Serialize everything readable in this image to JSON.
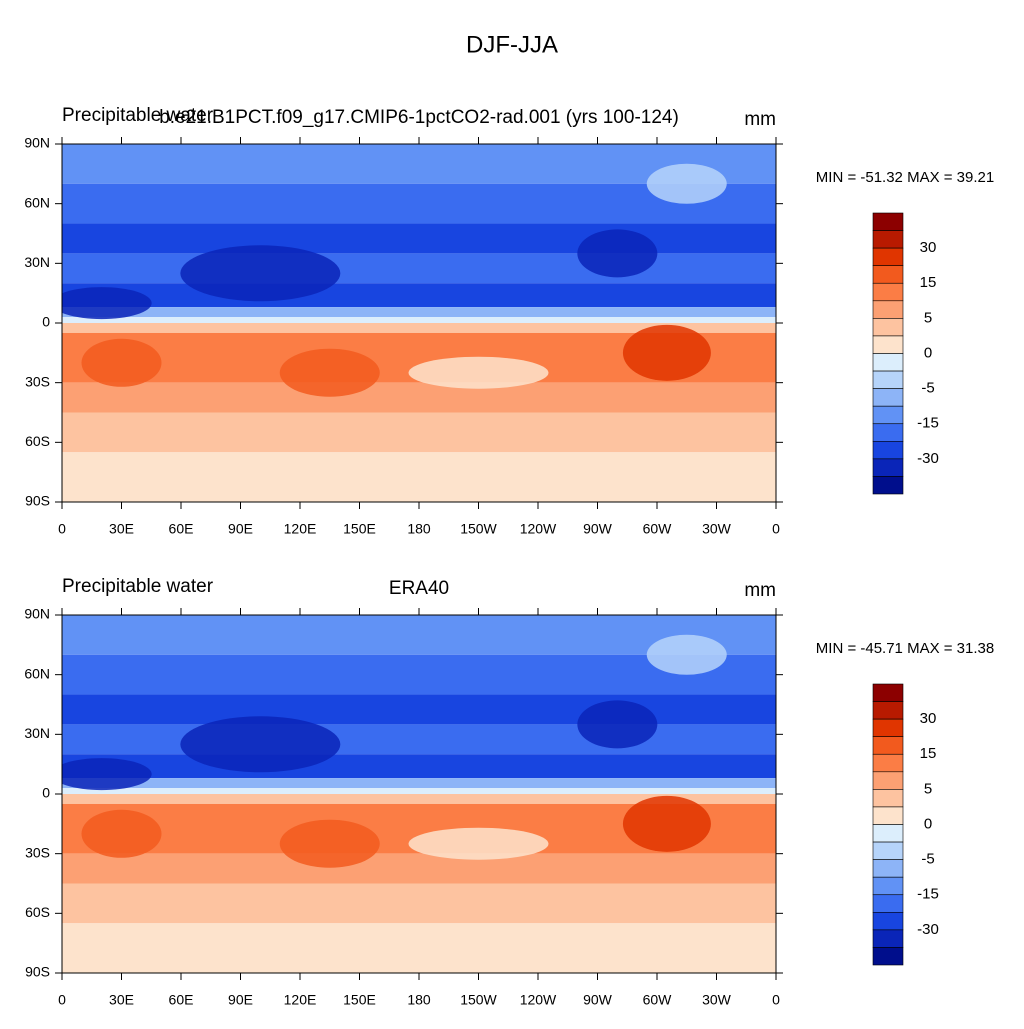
{
  "title": "DJF-JJA",
  "panels": [
    {
      "left_title": "Precipitable water",
      "center_title": "b.e21.B1PCT.f09_g17.CMIP6-1pctCO2-rad.001 (yrs 100-124)",
      "units": "mm",
      "stats": "MIN = -51.32 MAX =  39.21",
      "xlim": [
        0,
        360
      ],
      "ylim": [
        -90,
        90
      ],
      "xticks": [
        0,
        {
          "value": 30,
          "label": "30E"
        },
        {
          "value": 60,
          "label": "60E"
        },
        {
          "value": 90,
          "label": "90E"
        },
        {
          "value": 120,
          "label": "120E"
        },
        {
          "value": 150,
          "label": "150E"
        },
        180,
        {
          "value": 210,
          "label": "150W"
        },
        {
          "value": 240,
          "label": "120W"
        },
        {
          "value": 270,
          "label": "90W"
        },
        {
          "value": 300,
          "label": "60W"
        },
        {
          "value": 330,
          "label": "30W"
        },
        {
          "value": 360,
          "label": "0"
        }
      ],
      "yticks": [
        {
          "value": -90,
          "label": "90S"
        },
        {
          "value": -60,
          "label": "60S"
        },
        {
          "value": -30,
          "label": "30S"
        },
        0,
        {
          "value": 30,
          "label": "30N"
        },
        {
          "value": 60,
          "label": "60N"
        },
        {
          "value": 90,
          "label": "90N"
        }
      ],
      "colorbar": {
        "colors": [
          "#8c0000",
          "#b81a00",
          "#e03500",
          "#f25a1e",
          "#fb7d45",
          "#fca073",
          "#fdc3a0",
          "#fde3cc",
          "#dceefc",
          "#b6d4fa",
          "#8db4f7",
          "#6192f5",
          "#3a6cf0",
          "#1845e0",
          "#0a25b8",
          "#000e8c"
        ],
        "labels": [
          30,
          15,
          5,
          0,
          -5,
          -15,
          -30
        ]
      }
    },
    {
      "left_title": "Precipitable water",
      "center_title": "ERA40",
      "units": "mm",
      "stats": "MIN = -45.71 MAX =  31.38",
      "xlim": [
        0,
        360
      ],
      "ylim": [
        -90,
        90
      ],
      "xticks": [
        0,
        {
          "value": 30,
          "label": "30E"
        },
        {
          "value": 60,
          "label": "60E"
        },
        {
          "value": 90,
          "label": "90E"
        },
        {
          "value": 120,
          "label": "120E"
        },
        {
          "value": 150,
          "label": "150E"
        },
        180,
        {
          "value": 210,
          "label": "150W"
        },
        {
          "value": 240,
          "label": "120W"
        },
        {
          "value": 270,
          "label": "90W"
        },
        {
          "value": 300,
          "label": "60W"
        },
        {
          "value": 330,
          "label": "30W"
        },
        {
          "value": 360,
          "label": "0"
        }
      ],
      "yticks": [
        {
          "value": -90,
          "label": "90S"
        },
        {
          "value": -60,
          "label": "60S"
        },
        {
          "value": -30,
          "label": "30S"
        },
        0,
        {
          "value": 30,
          "label": "30N"
        },
        {
          "value": 60,
          "label": "60N"
        },
        {
          "value": 90,
          "label": "90N"
        }
      ],
      "colorbar": {
        "colors": [
          "#8c0000",
          "#b81a00",
          "#e03500",
          "#f25a1e",
          "#fb7d45",
          "#fca073",
          "#fdc3a0",
          "#fde3cc",
          "#dceefc",
          "#b6d4fa",
          "#8db4f7",
          "#6192f5",
          "#3a6cf0",
          "#1845e0",
          "#0a25b8",
          "#000e8c"
        ],
        "labels": [
          30,
          15,
          5,
          0,
          -5,
          -15,
          -30
        ]
      }
    }
  ]
}
